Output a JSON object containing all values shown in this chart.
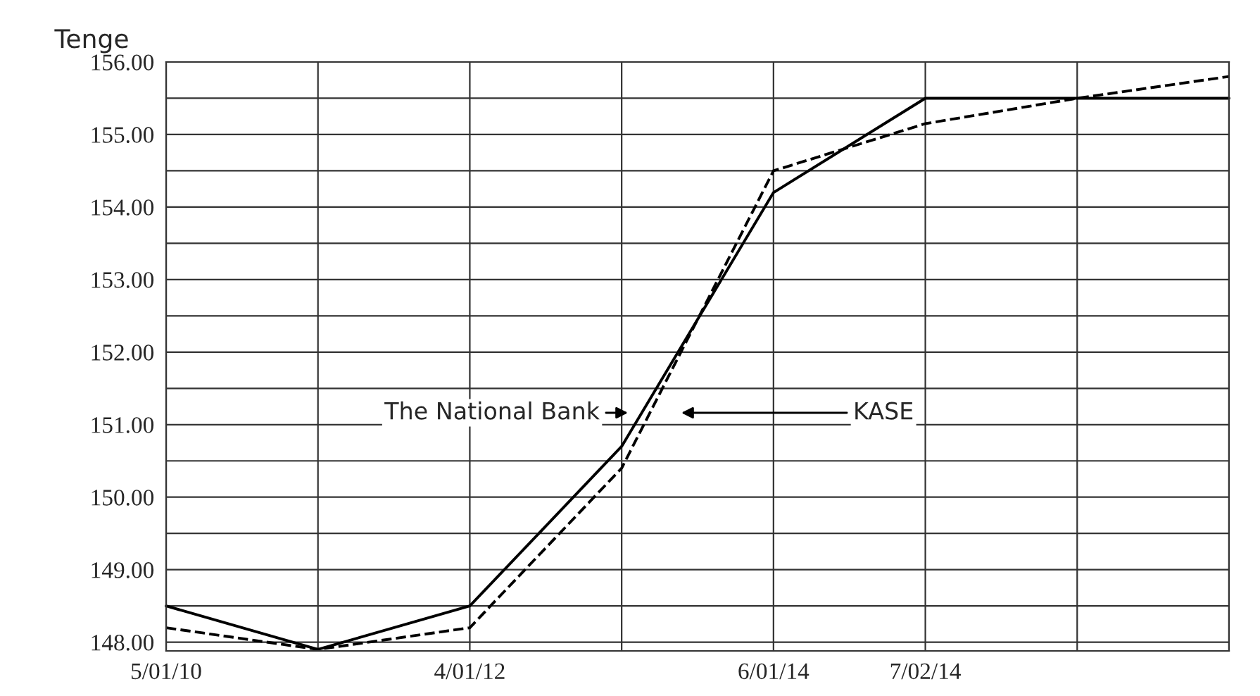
{
  "chart_data": {
    "type": "line",
    "ylabel": "Tenge",
    "categories": [
      "5/01/10",
      null,
      "4/01/12",
      null,
      "6/01/14",
      "7/02/14",
      null,
      null
    ],
    "series": [
      {
        "color": "#000000",
        "line_style": "solid",
        "values": [
          148.5,
          147.9,
          148.5,
          150.7,
          154.2,
          155.5,
          155.5,
          155.5
        ]
      },
      {
        "color": "#000000",
        "line_style": "dashed",
        "values": [
          148.2,
          147.9,
          148.2,
          150.4,
          154.5,
          155.15,
          155.5,
          155.8
        ]
      }
    ],
    "ylim": [
      147.88,
      156
    ],
    "yticks": [
      {
        "value": 148,
        "label": "148.00"
      },
      {
        "value": 148.5,
        "label": null
      },
      {
        "value": 149,
        "label": "149.00"
      },
      {
        "value": 149.5,
        "label": null
      },
      {
        "value": 150,
        "label": "150.00"
      },
      {
        "value": 150.5,
        "label": null
      },
      {
        "value": 151,
        "label": "151.00"
      },
      {
        "value": 151.5,
        "label": null
      },
      {
        "value": 152,
        "label": "152.00"
      },
      {
        "value": 152.5,
        "label": null
      },
      {
        "value": 153,
        "label": "153.00"
      },
      {
        "value": 153.5,
        "label": null
      },
      {
        "value": 154,
        "label": "154.00"
      },
      {
        "value": 154.5,
        "label": null
      },
      {
        "value": 155,
        "label": "155.00"
      },
      {
        "value": 155.5,
        "label": null
      },
      {
        "value": 156,
        "label": "156.00"
      }
    ],
    "annotations": [
      "The National Bank",
      "KASE"
    ],
    "grid": true,
    "legend": false,
    "marker": "none"
  }
}
